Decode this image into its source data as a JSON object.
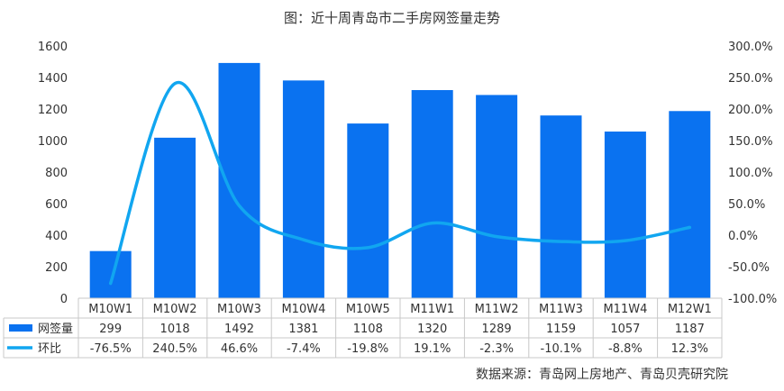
{
  "chart_data": {
    "type": "bar",
    "title": "图：近十周青岛市二手房网签量走势",
    "categories": [
      "M10W1",
      "M10W2",
      "M10W3",
      "M10W4",
      "M10W5",
      "M11W1",
      "M11W2",
      "M11W3",
      "M11W4",
      "M12W1"
    ],
    "series": [
      {
        "name": "网签量",
        "type": "bar",
        "axis": "left",
        "color": "#0a72f0",
        "values": [
          299,
          1018,
          1492,
          1381,
          1108,
          1320,
          1289,
          1159,
          1057,
          1187
        ],
        "table_labels": [
          "299",
          "1018",
          "1492",
          "1381",
          "1108",
          "1320",
          "1289",
          "1159",
          "1057",
          "1187"
        ]
      },
      {
        "name": "环比",
        "type": "line",
        "smooth": true,
        "axis": "right",
        "color": "#11a6f0",
        "values": [
          -76.5,
          240.5,
          46.6,
          -7.4,
          -19.8,
          19.1,
          -2.3,
          -10.1,
          -8.8,
          12.3
        ],
        "table_labels": [
          "-76.5%",
          "240.5%",
          "46.6%",
          "-7.4%",
          "-19.8%",
          "19.1%",
          "-2.3%",
          "-10.1%",
          "-8.8%",
          "12.3%"
        ]
      }
    ],
    "y_left": {
      "min": 0,
      "max": 1600,
      "step": 200,
      "ticks": [
        "0",
        "200",
        "400",
        "600",
        "800",
        "1000",
        "1200",
        "1400",
        "1600"
      ]
    },
    "y_right": {
      "min": -100,
      "max": 300,
      "step": 50,
      "ticks": [
        "-100.0%",
        "-50.0%",
        "0.0%",
        "50.0%",
        "100.0%",
        "150.0%",
        "200.0%",
        "250.0%",
        "300.0%"
      ]
    },
    "grid": false,
    "legend": "data-table"
  },
  "source": "数据来源：青岛网上房地产、青岛贝壳研究院"
}
